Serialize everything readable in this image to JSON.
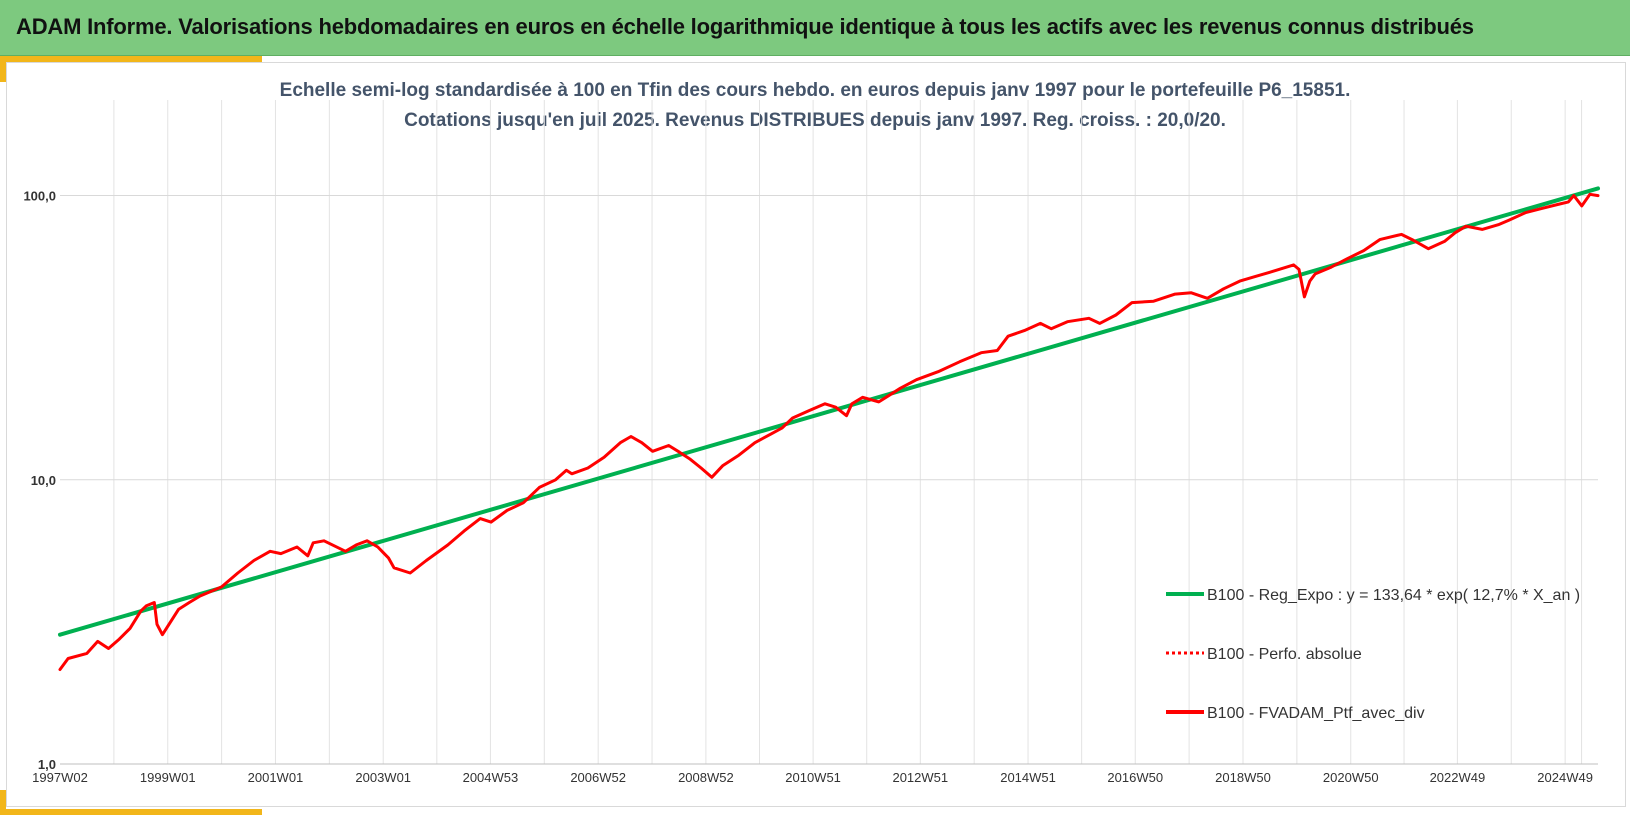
{
  "header": {
    "title": "ADAM Informe. Valorisations hebdomadaires en euros en échelle logarithmique identique à tous les actifs avec les revenus connus distribués"
  },
  "colors": {
    "header_bg": "#7dc97f",
    "accent": "#f2b61a",
    "regression": "#00b050",
    "portfolio": "#ff0000",
    "title_text": "#44546a"
  },
  "chart_data": {
    "type": "line",
    "title": "Echelle semi-log standardisée à 100 en Tfin des cours hebdo.  en euros depuis janv 1997 pour le portefeuille P6_15851.",
    "subtitle": "Cotations jusqu'en juil 2025. Revenus DISTRIBUES depuis janv 1997. Reg. croiss. : 20,0/20.",
    "y_scale": "log",
    "ylim": [
      1,
      200
    ],
    "y_ticks": [
      {
        "value": 1,
        "label": "1,0"
      },
      {
        "value": 10,
        "label": "10,0"
      },
      {
        "value": 100,
        "label": "100,0"
      }
    ],
    "xlim": [
      1997.0,
      2025.55
    ],
    "x_ticks": [
      {
        "value": 1997.0,
        "label": "1997W02"
      },
      {
        "value": 1999.0,
        "label": "1999W01"
      },
      {
        "value": 2001.0,
        "label": "2001W01"
      },
      {
        "value": 2003.0,
        "label": "2003W01"
      },
      {
        "value": 2004.99,
        "label": "2004W53"
      },
      {
        "value": 2006.99,
        "label": "2006W52"
      },
      {
        "value": 2008.99,
        "label": "2008W52"
      },
      {
        "value": 2010.98,
        "label": "2010W51"
      },
      {
        "value": 2012.97,
        "label": "2012W51"
      },
      {
        "value": 2014.97,
        "label": "2014W51"
      },
      {
        "value": 2016.96,
        "label": "2016W50"
      },
      {
        "value": 2018.96,
        "label": "2018W50"
      },
      {
        "value": 2020.96,
        "label": "2020W50"
      },
      {
        "value": 2022.94,
        "label": "2022W49"
      },
      {
        "value": 2024.94,
        "label": "2024W49"
      }
    ],
    "grid": true,
    "legend_position": "bottom-right",
    "series": [
      {
        "name": "B100 - Reg_Expo : y = 133,64 * exp( 12,7% *  X_an )",
        "color": "#00b050",
        "style": "solid",
        "x": [
          1997.0,
          2025.55
        ],
        "y": [
          2.85,
          106.0
        ]
      },
      {
        "name": "B100 - Perfo. absolue",
        "color": "#ff0000",
        "style": "dotted",
        "x": [],
        "y": []
      },
      {
        "name": "B100 - FVADAM_Ptf_avec_div",
        "color": "#ff0000",
        "style": "solid",
        "x": [
          1997.0,
          1997.15,
          1997.5,
          1997.7,
          1997.9,
          1998.1,
          1998.3,
          1998.5,
          1998.6,
          1998.75,
          1998.8,
          1998.9,
          1999.2,
          1999.4,
          1999.6,
          2000.0,
          2000.3,
          2000.6,
          2000.9,
          2001.1,
          2001.4,
          2001.6,
          2001.7,
          2001.9,
          2002.3,
          2002.5,
          2002.7,
          2002.9,
          2003.1,
          2003.2,
          2003.5,
          2003.8,
          2004.2,
          2004.5,
          2004.8,
          2005.0,
          2005.3,
          2005.6,
          2005.9,
          2006.2,
          2006.4,
          2006.5,
          2006.8,
          2007.1,
          2007.4,
          2007.6,
          2007.8,
          2008.0,
          2008.3,
          2008.5,
          2008.7,
          2008.9,
          2009.1,
          2009.3,
          2009.6,
          2009.9,
          2010.2,
          2010.4,
          2010.6,
          2010.9,
          2011.2,
          2011.4,
          2011.6,
          2011.7,
          2011.9,
          2012.2,
          2012.6,
          2012.9,
          2013.3,
          2013.7,
          2014.1,
          2014.4,
          2014.6,
          2014.9,
          2015.2,
          2015.4,
          2015.7,
          2016.1,
          2016.3,
          2016.6,
          2016.9,
          2017.3,
          2017.7,
          2018.0,
          2018.3,
          2018.6,
          2018.9,
          2019.2,
          2019.5,
          2019.9,
          2020.0,
          2020.1,
          2020.2,
          2020.3,
          2020.6,
          2020.9,
          2021.2,
          2021.5,
          2021.9,
          2022.1,
          2022.4,
          2022.7,
          2022.9,
          2023.1,
          2023.4,
          2023.7,
          2023.9,
          2024.2,
          2024.5,
          2024.8,
          2025.0,
          2025.1,
          2025.25,
          2025.4,
          2025.55
        ],
        "y": [
          2.15,
          2.35,
          2.45,
          2.7,
          2.55,
          2.75,
          3.0,
          3.45,
          3.6,
          3.7,
          3.1,
          2.85,
          3.5,
          3.7,
          3.9,
          4.2,
          4.7,
          5.2,
          5.6,
          5.5,
          5.8,
          5.4,
          6.0,
          6.1,
          5.6,
          5.9,
          6.1,
          5.8,
          5.3,
          4.9,
          4.7,
          5.2,
          5.9,
          6.6,
          7.3,
          7.1,
          7.8,
          8.3,
          9.4,
          10.0,
          10.8,
          10.5,
          11.0,
          12.0,
          13.5,
          14.2,
          13.5,
          12.6,
          13.2,
          12.5,
          11.8,
          11.0,
          10.2,
          11.2,
          12.2,
          13.5,
          14.5,
          15.2,
          16.5,
          17.5,
          18.5,
          18.0,
          16.8,
          18.5,
          19.5,
          18.8,
          21.0,
          22.5,
          24.0,
          26.0,
          28.0,
          28.5,
          32.0,
          33.5,
          35.5,
          34.0,
          36.0,
          37.0,
          35.5,
          38.0,
          42.0,
          42.5,
          45.0,
          45.5,
          43.5,
          47.0,
          50.0,
          52.0,
          54.0,
          57.0,
          55.0,
          44.0,
          50.0,
          53.0,
          56.0,
          60.0,
          64.0,
          70.0,
          73.0,
          70.0,
          65.0,
          69.0,
          74.0,
          78.0,
          76.0,
          79.0,
          82.0,
          87.0,
          90.0,
          93.0,
          95.0,
          100.0,
          92.0,
          101.0,
          100.0
        ]
      }
    ]
  }
}
